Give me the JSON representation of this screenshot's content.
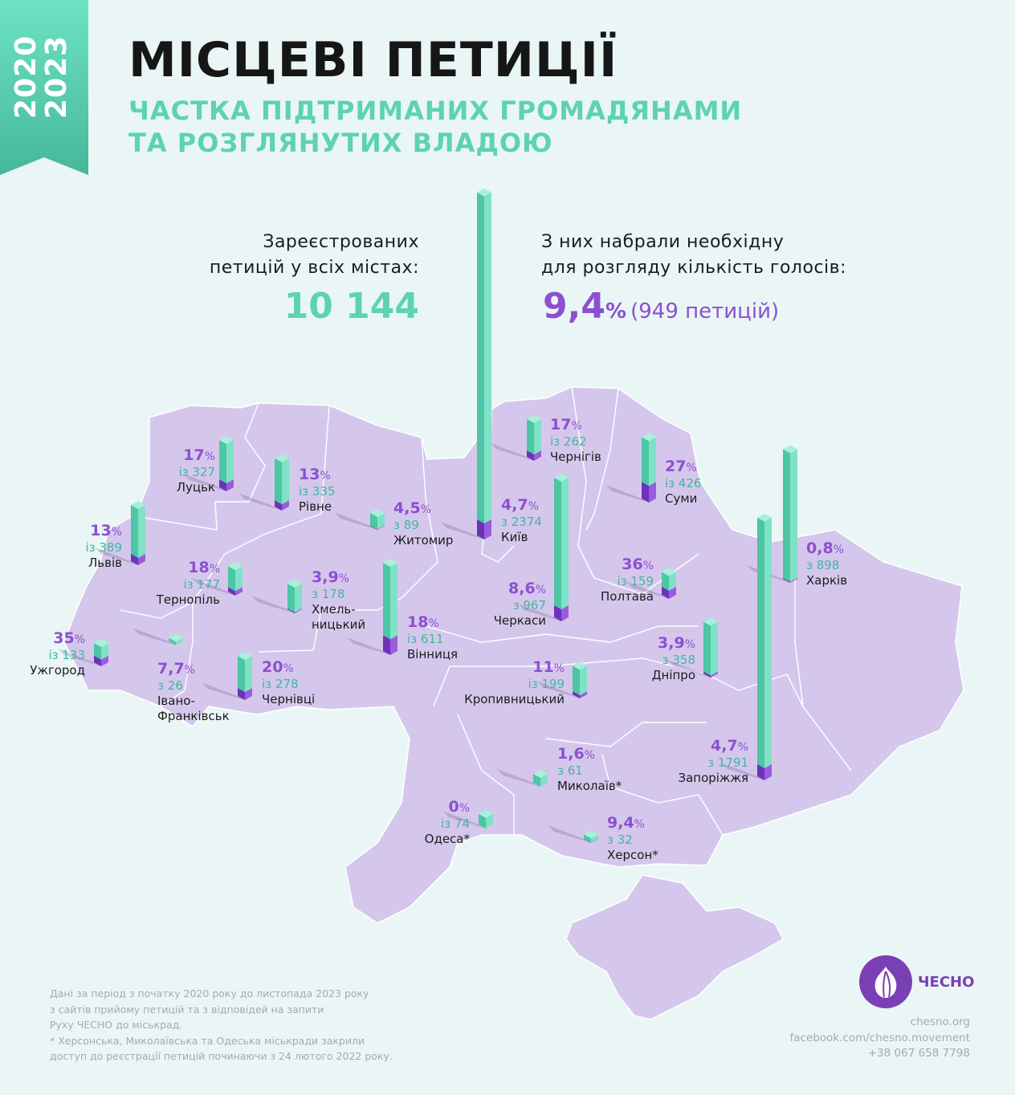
{
  "header": {
    "years_top": "2020",
    "years_bottom": "2023",
    "title": "МІСЦЕВІ ПЕТИЦІЇ",
    "subtitle_line1": "ЧАСТКА ПІДТРИМАНИХ ГРОМАДЯНАМИ",
    "subtitle_line2": "ТА РОЗГЛЯНУТИХ ВЛАДОЮ"
  },
  "summary": {
    "registered_label_1": "Зареєстрованих",
    "registered_label_2": "петицій у всіх містах:",
    "registered_total": "10 144",
    "supported_label_1": "З них набрали необхідну",
    "supported_label_2": "для розгляду кількість голосів:",
    "supported_pct": "9,4",
    "supported_pct_unit": "%",
    "supported_count": "(949 петицій)"
  },
  "colors": {
    "background": "#e9f6f5",
    "map_fill": "#d5c7ec",
    "map_border": "#ffffff",
    "mint": "#5ed2b2",
    "purple": "#8c4fd1",
    "ribbon_top": "#6de3c3",
    "ribbon_bottom": "#47b79c"
  },
  "cities": [
    {
      "name": "Луцьк",
      "pct": "17",
      "tot": "із 327",
      "share": 0.17,
      "total": 327
    },
    {
      "name": "Рівне",
      "pct": "13",
      "tot": "із 335",
      "share": 0.13,
      "total": 335
    },
    {
      "name": "Житомир",
      "pct": "4,5",
      "tot": "з 89",
      "share": 0.045,
      "total": 89
    },
    {
      "name": "Київ",
      "pct": "4,7",
      "tot": "з 2374",
      "share": 0.047,
      "total": 2374
    },
    {
      "name": "Чернігів",
      "pct": "17",
      "tot": "із 262",
      "share": 0.17,
      "total": 262
    },
    {
      "name": "Суми",
      "pct": "27",
      "tot": "із 426",
      "share": 0.27,
      "total": 426
    },
    {
      "name": "Харків",
      "pct": "0,8",
      "tot": "з 898",
      "share": 0.008,
      "total": 898
    },
    {
      "name": "Львів",
      "pct": "13",
      "tot": "із 389",
      "share": 0.13,
      "total": 389
    },
    {
      "name": "Тернопіль",
      "pct": "18",
      "tot": "із 177",
      "share": 0.18,
      "total": 177
    },
    {
      "name": "Хмель-\nницький",
      "pct": "3,9",
      "tot": "з 178",
      "share": 0.039,
      "total": 178
    },
    {
      "name": "Вінниця",
      "pct": "18",
      "tot": "із 611",
      "share": 0.18,
      "total": 611
    },
    {
      "name": "Черкаси",
      "pct": "8,6",
      "tot": "з 967",
      "share": 0.086,
      "total": 967
    },
    {
      "name": "Полтава",
      "pct": "36",
      "tot": "із 159",
      "share": 0.36,
      "total": 159
    },
    {
      "name": "Ужгород",
      "pct": "35",
      "tot": "із 133",
      "share": 0.35,
      "total": 133
    },
    {
      "name": "Івано-\nФранківськ",
      "pct": "7,7",
      "tot": "з 26",
      "share": 0.077,
      "total": 26
    },
    {
      "name": "Чернівці",
      "pct": "20",
      "tot": "із 278",
      "share": 0.2,
      "total": 278
    },
    {
      "name": "Дніпро",
      "pct": "3,9",
      "tot": "з 358",
      "share": 0.039,
      "total": 358
    },
    {
      "name": "Кропивницький",
      "pct": "11",
      "tot": "із 199",
      "share": 0.11,
      "total": 199
    },
    {
      "name": "Запоріжжя",
      "pct": "4,7",
      "tot": "з 1791",
      "share": 0.047,
      "total": 1791
    },
    {
      "name": "Миколаїв*",
      "pct": "1,6",
      "tot": "з 61",
      "share": 0.016,
      "total": 61
    },
    {
      "name": "Одеса*",
      "pct": "0",
      "tot": "із 74",
      "share": 0.0,
      "total": 74
    },
    {
      "name": "Херсон*",
      "pct": "9,4",
      "tot": "з 32",
      "share": 0.094,
      "total": 32
    }
  ],
  "percent_sign": "%",
  "footnote": {
    "line1": "Дані за період з початку 2020 року до листопада 2023 року",
    "line2": "з сайтів прийому петицій та з відповідей на запити",
    "line3": "Руху ЧЕСНО до міськрад.",
    "line4": "* Херсонська, Миколаївська та Одеська міськради закрили",
    "line5": "доступ до реєстрації петицій починаючи з 24 лютого 2022 року."
  },
  "brand": {
    "name": "ЧЕСНО",
    "site": "chesno.org",
    "facebook": "facebook.com/chesno.movement",
    "phone": "+38 067 658 7798"
  }
}
